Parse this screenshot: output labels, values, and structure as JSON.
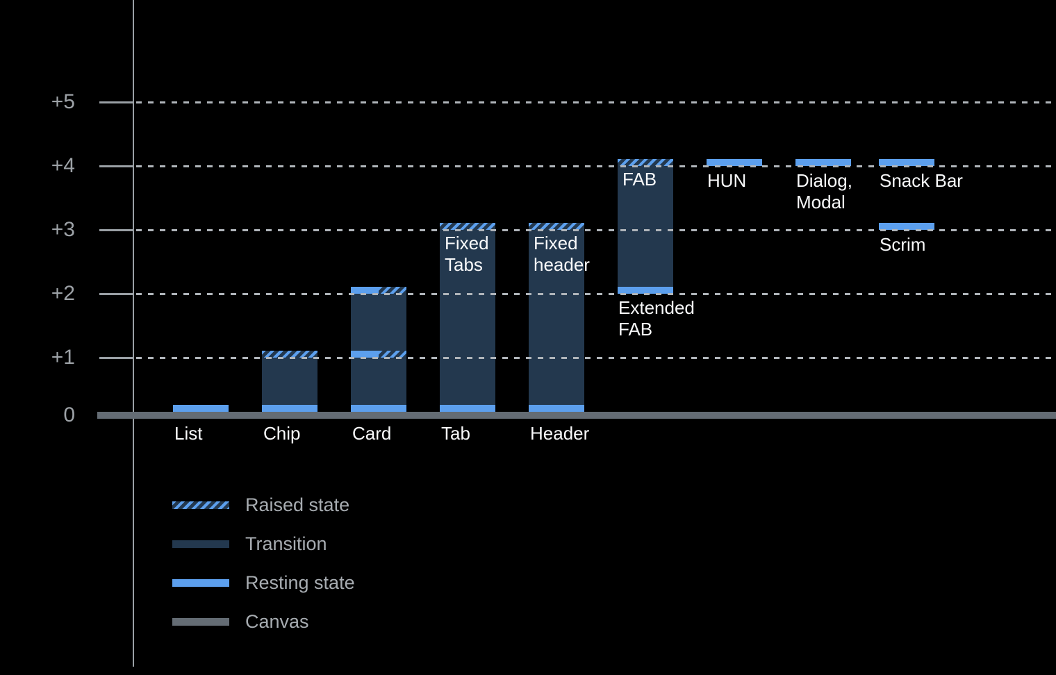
{
  "colors": {
    "background": "#000000",
    "resting": "#5C9FED",
    "transition": "#23384E",
    "hatch_stripe": "#5C9FED",
    "canvas": "#646C74",
    "grid_dots": "#B0B5BA",
    "axis": "#9AA0A5",
    "axis_label_text": "#9DA2A7",
    "bar_label_text": "#F8F9FA",
    "legend_text": "#A7ACB1"
  },
  "legend": {
    "items": [
      {
        "id": "raised",
        "swatch": "raised",
        "label": "Raised state"
      },
      {
        "id": "transition",
        "swatch": "transition",
        "label": "Transition"
      },
      {
        "id": "resting",
        "swatch": "resting",
        "label": "Resting state"
      },
      {
        "id": "canvas",
        "swatch": "canvas",
        "label": "Canvas"
      }
    ]
  },
  "chart_data": {
    "type": "bar",
    "title": "",
    "xlabel": "",
    "ylabel": "",
    "y_ticks": [
      {
        "text": "+5",
        "dp": 5
      },
      {
        "text": "+4",
        "dp": 4
      },
      {
        "text": "+3",
        "dp": 3
      },
      {
        "text": "+2",
        "dp": 2
      },
      {
        "text": "+1",
        "dp": 1
      },
      {
        "text": "0",
        "dp": 0
      }
    ],
    "ylim": [
      0,
      5
    ],
    "grid": "dotted-horizontal",
    "legend_position": "bottom-left",
    "units": "elevation steps above canvas (0)",
    "components": [
      {
        "id": "list",
        "label": "List",
        "label_position": "axis",
        "bar": null,
        "strips": [
          {
            "dp": 0,
            "type": "resting"
          }
        ]
      },
      {
        "id": "chip",
        "label": "Chip",
        "label_position": "axis",
        "bar": {
          "from": 0,
          "to": 1
        },
        "strips": [
          {
            "dp": 0,
            "type": "resting"
          },
          {
            "dp": 1,
            "type": "raised"
          }
        ]
      },
      {
        "id": "card",
        "label": "Card",
        "label_position": "axis",
        "bar": {
          "from": 0,
          "to": 2
        },
        "strips": [
          {
            "dp": 0,
            "type": "resting"
          },
          {
            "dp": 1,
            "type": "resting-raised"
          },
          {
            "dp": 2,
            "type": "resting-raised"
          }
        ]
      },
      {
        "id": "tab",
        "label": "Tab",
        "label_position": "axis",
        "inside_label": "Fixed\nTabs",
        "bar": {
          "from": 0,
          "to": 3
        },
        "strips": [
          {
            "dp": 0,
            "type": "resting"
          },
          {
            "dp": 3,
            "type": "raised"
          }
        ]
      },
      {
        "id": "header",
        "label": "Header",
        "label_position": "axis",
        "inside_label": "Fixed\nheader",
        "bar": {
          "from": 0,
          "to": 3
        },
        "strips": [
          {
            "dp": 0,
            "type": "resting"
          },
          {
            "dp": 3,
            "type": "raised"
          }
        ]
      },
      {
        "id": "fab",
        "label": "Extended\nFAB",
        "label_position": "below-bar",
        "inside_label": "FAB",
        "bar": {
          "from": 2,
          "to": 4
        },
        "strips": [
          {
            "dp": 2,
            "type": "resting"
          },
          {
            "dp": 4,
            "type": "raised"
          }
        ]
      },
      {
        "id": "hun",
        "label": "HUN",
        "label_position": "below-strip",
        "bar": null,
        "strips": [
          {
            "dp": 4,
            "type": "resting"
          }
        ]
      },
      {
        "id": "dialog-modal",
        "label": "Dialog,\nModal",
        "label_position": "below-strip",
        "bar": null,
        "strips": [
          {
            "dp": 4,
            "type": "resting"
          }
        ]
      },
      {
        "id": "snack-bar",
        "label": "Snack Bar",
        "label_position": "below-strip",
        "bar": null,
        "strips": [
          {
            "dp": 4,
            "type": "resting"
          }
        ]
      },
      {
        "id": "scrim",
        "label": "Scrim",
        "label_position": "below-strip",
        "bar": null,
        "strips": [
          {
            "dp": 3,
            "type": "resting"
          }
        ]
      }
    ]
  }
}
